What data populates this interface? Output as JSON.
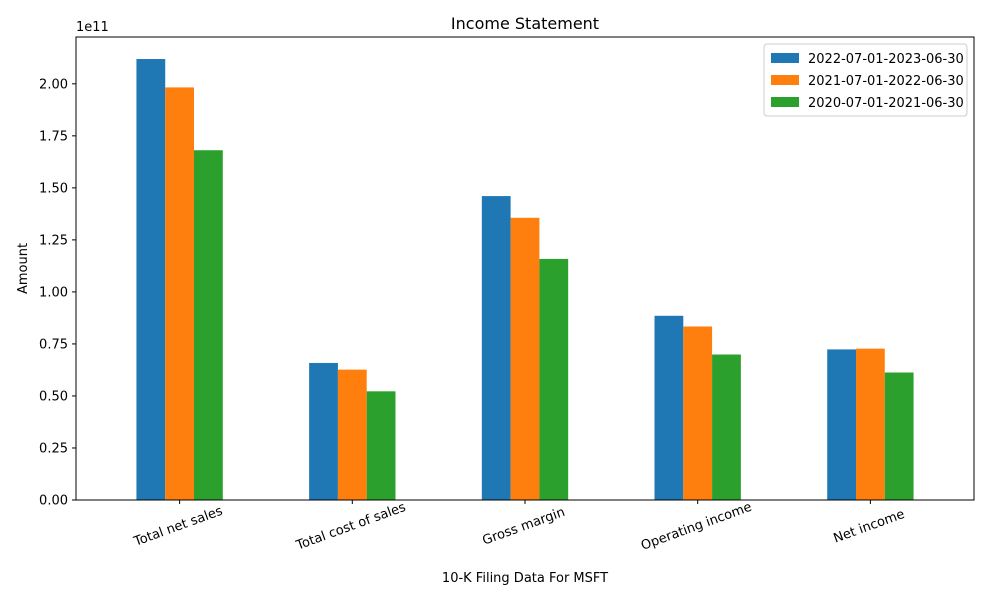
{
  "chart_data": {
    "type": "bar",
    "title": "Income Statement",
    "xlabel": "10-K Filing Data For MSFT",
    "ylabel": "Amount",
    "offset_label": "1e11",
    "categories": [
      "Total net sales",
      "Total cost of sales",
      "Gross margin",
      "Operating income",
      "Net income"
    ],
    "series": [
      {
        "name": "2022-07-01-2023-06-30",
        "color": "#1f77b4",
        "values": [
          211915000000,
          65863000000,
          146052000000,
          88523000000,
          72361000000
        ]
      },
      {
        "name": "2021-07-01-2022-06-30",
        "color": "#ff7f0e",
        "values": [
          198270000000,
          62650000000,
          135620000000,
          83383000000,
          72738000000
        ]
      },
      {
        "name": "2020-07-01-2021-06-30",
        "color": "#2ca02c",
        "values": [
          168088000000,
          52232000000,
          115856000000,
          69916000000,
          61271000000
        ]
      }
    ],
    "ylim": [
      0,
      222500000000
    ],
    "yticks": [
      0,
      25000000000,
      50000000000,
      75000000000,
      100000000000,
      125000000000,
      150000000000,
      175000000000,
      200000000000
    ],
    "ytick_labels": [
      "0.00",
      "0.25",
      "0.50",
      "0.75",
      "1.00",
      "1.25",
      "1.50",
      "1.75",
      "2.00"
    ],
    "legend_position": "top-right",
    "grid": false
  }
}
